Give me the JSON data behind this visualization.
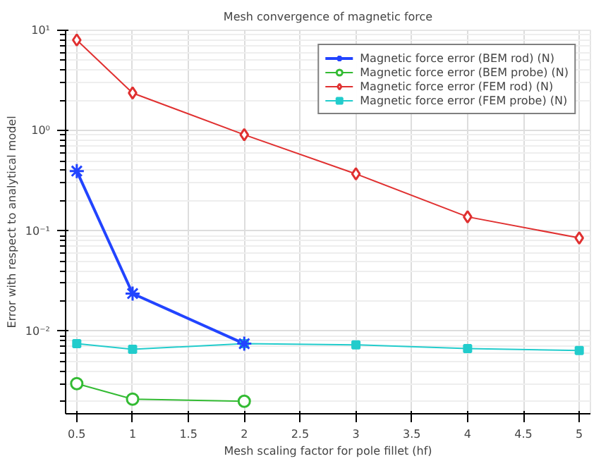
{
  "chart_data": {
    "type": "line",
    "title": "Mesh convergence of magnetic force",
    "xlabel": "Mesh scaling factor for pole fillet (hf)",
    "ylabel": "Error with respect to analytical model",
    "log": "y",
    "grid": true,
    "legend": "top right",
    "x": [
      0.5,
      1,
      2,
      3,
      4,
      5
    ],
    "xlim": [
      0.4,
      5.1
    ],
    "xticks": [
      0.5,
      1,
      1.5,
      2,
      2.5,
      3,
      3.5,
      4,
      4.5,
      5
    ],
    "ylim": [
      0.0015,
      10
    ],
    "yticks": [
      {
        "value": 0.01,
        "label": "10⁻²"
      },
      {
        "value": 0.1,
        "label": "10⁻¹"
      },
      {
        "value": 1,
        "label": "10⁰"
      },
      {
        "value": 10,
        "label": "10¹"
      }
    ],
    "series": [
      {
        "name": "Magnetic force error (BEM rod) (N)",
        "color": "#2244ff",
        "marker": "cross",
        "x": [
          0.5,
          1,
          2
        ],
        "values": [
          0.395,
          0.0237,
          0.0075
        ]
      },
      {
        "name": "Magnetic force error (BEM probe) (N)",
        "color": "#33bb33",
        "marker": "circle",
        "x": [
          0.5,
          1,
          2
        ],
        "values": [
          0.003,
          0.0021,
          0.002
        ]
      },
      {
        "name": "Magnetic force error (FEM rod) (N)",
        "color": "#e03030",
        "marker": "diamond",
        "values": [
          8.0,
          2.37,
          0.91,
          0.37,
          0.138,
          0.085
        ]
      },
      {
        "name": "Magnetic force error (FEM probe) (N)",
        "color": "#22cccc",
        "marker": "square",
        "values": [
          0.0075,
          0.0066,
          0.0075,
          0.0073,
          0.0067,
          0.0064
        ]
      }
    ]
  }
}
